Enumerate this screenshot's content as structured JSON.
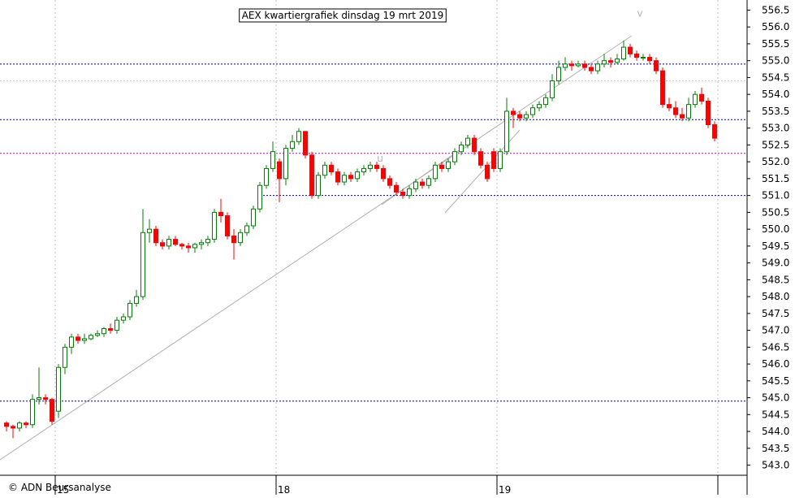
{
  "chart_data": {
    "type": "candlestick",
    "title": "AEX kwartiergrafiek dinsdag 19 mrt 2019",
    "footer": "© ADN Beursanalyse",
    "annotations": [
      {
        "text": "u",
        "x": 57.5,
        "y": 552.0
      },
      {
        "text": "v",
        "x": 97.5,
        "y": 556.3
      }
    ],
    "xlim": [
      -1,
      114
    ],
    "ylim": [
      542.7,
      556.8
    ],
    "xticks": [
      {
        "value": 7.5,
        "label": "15"
      },
      {
        "value": 41.5,
        "label": "18"
      },
      {
        "value": 75.5,
        "label": "19"
      },
      {
        "value": 109.5,
        "label": null
      }
    ],
    "yticks": [
      {
        "value": 543,
        "label": "543.0"
      },
      543.5,
      {
        "value": 544,
        "label": "544.0"
      },
      544.5,
      {
        "value": 545,
        "label": "545.0"
      },
      545.5,
      {
        "value": 546,
        "label": "546.0"
      },
      546.5,
      {
        "value": 547,
        "label": "547.0"
      },
      547.5,
      {
        "value": 548,
        "label": "548.0"
      },
      548.5,
      {
        "value": 549,
        "label": "549.0"
      },
      549.5,
      {
        "value": 550,
        "label": "550.0"
      },
      550.5,
      {
        "value": 551,
        "label": "551.0"
      },
      551.5,
      {
        "value": 552,
        "label": "552.0"
      },
      552.5,
      {
        "value": 553,
        "label": "553.0"
      },
      553.5,
      {
        "value": 554,
        "label": "554.0"
      },
      554.5,
      {
        "value": 555,
        "label": "555.0"
      },
      555.5,
      {
        "value": 556,
        "label": "556.0"
      },
      556.5
    ],
    "grid": true,
    "up_color": "#008000",
    "down_color": "#ff0000",
    "levels": [
      {
        "value": 554.9,
        "color": "#0000a0"
      },
      {
        "value": 554.4,
        "color": "#c0c0c0"
      },
      {
        "value": 553.25,
        "color": "#0000a0"
      },
      {
        "value": 552.25,
        "color": "#c000c0"
      },
      {
        "value": 551.0,
        "color": "#0000a0",
        "from": 39
      },
      {
        "value": 544.9,
        "color": "#0000a0"
      }
    ],
    "open": [
      544.25,
      544.15,
      544.1,
      544.25,
      544.2,
      544.95,
      545.0,
      544.95,
      544.6,
      545.9,
      546.5,
      546.8,
      546.7,
      546.75,
      546.85,
      546.9,
      547.05,
      547.0,
      547.3,
      547.4,
      547.8,
      548.0,
      549.9,
      550.0,
      549.6,
      549.5,
      549.7,
      549.55,
      549.5,
      549.45,
      549.55,
      549.6,
      549.7,
      550.5,
      550.4,
      549.8,
      549.6,
      549.9,
      550.1,
      550.6,
      551.3,
      551.8,
      552.0,
      551.5,
      552.4,
      552.6,
      552.9,
      552.2,
      551.0,
      551.6,
      551.9,
      551.7,
      551.4,
      551.6,
      551.5,
      551.7,
      551.8,
      551.9,
      551.8,
      551.5,
      551.3,
      551.1,
      551.0,
      551.2,
      551.4,
      551.3,
      551.5,
      551.9,
      551.8,
      552.0,
      552.3,
      552.5,
      552.7,
      552.3,
      551.9,
      552.3,
      551.8,
      552.3,
      553.5,
      553.4,
      553.3,
      553.4,
      553.6,
      553.7,
      553.9,
      554.4,
      554.8,
      554.9,
      554.85,
      554.9,
      554.8,
      554.7,
      554.9,
      555.0,
      554.95,
      555.05,
      555.4,
      555.2,
      555.1,
      555.1,
      555.0,
      554.7,
      553.7,
      553.6,
      553.4,
      553.3,
      553.7,
      554.0,
      553.8,
      553.1
    ],
    "high": [
      544.3,
      544.2,
      544.3,
      544.3,
      545.1,
      545.9,
      545.1,
      545.0,
      546.0,
      546.6,
      546.9,
      546.9,
      546.9,
      546.9,
      547.0,
      547.1,
      547.2,
      547.4,
      547.5,
      547.9,
      548.2,
      550.6,
      550.3,
      550.1,
      549.7,
      549.8,
      549.8,
      549.6,
      549.6,
      549.6,
      549.7,
      549.8,
      550.6,
      550.9,
      550.5,
      550.0,
      550.0,
      550.2,
      550.7,
      551.4,
      551.9,
      552.6,
      552.1,
      552.5,
      552.8,
      553.0,
      552.9,
      552.3,
      551.7,
      552.0,
      552.0,
      551.8,
      551.7,
      551.7,
      551.8,
      551.9,
      552.0,
      552.0,
      551.9,
      551.6,
      551.4,
      551.2,
      551.3,
      551.5,
      551.5,
      551.6,
      552.0,
      552.0,
      552.1,
      552.4,
      552.6,
      552.8,
      552.8,
      552.4,
      552.0,
      552.4,
      552.4,
      553.9,
      553.6,
      553.5,
      553.5,
      553.7,
      553.8,
      554.0,
      554.6,
      555.0,
      555.1,
      555.0,
      555.0,
      555.0,
      554.9,
      555.0,
      555.2,
      555.1,
      555.2,
      555.6,
      555.5,
      555.3,
      555.2,
      555.2,
      555.1,
      554.8,
      553.9,
      553.8,
      553.6,
      553.9,
      554.1,
      554.2,
      553.9,
      553.2
    ],
    "low": [
      544.0,
      543.8,
      544.0,
      544.1,
      544.1,
      544.8,
      544.8,
      544.2,
      544.4,
      545.7,
      546.3,
      546.6,
      546.6,
      546.7,
      546.8,
      546.8,
      546.9,
      546.9,
      547.2,
      547.3,
      547.7,
      547.9,
      549.6,
      549.5,
      549.4,
      549.4,
      549.5,
      549.4,
      549.3,
      549.3,
      549.4,
      549.5,
      549.6,
      550.2,
      549.7,
      549.1,
      549.5,
      549.8,
      550.0,
      550.5,
      551.2,
      551.7,
      550.8,
      551.3,
      552.3,
      552.5,
      552.1,
      550.9,
      550.9,
      551.5,
      551.6,
      551.3,
      551.3,
      551.4,
      551.4,
      551.6,
      551.7,
      551.7,
      551.4,
      551.2,
      551.0,
      550.9,
      550.9,
      551.1,
      551.2,
      551.2,
      551.4,
      551.7,
      551.7,
      551.9,
      552.2,
      552.4,
      552.2,
      551.8,
      551.4,
      551.7,
      551.7,
      552.2,
      553.0,
      553.2,
      553.2,
      553.3,
      553.5,
      553.6,
      553.8,
      554.3,
      554.7,
      554.7,
      554.8,
      554.7,
      554.6,
      554.6,
      554.8,
      554.8,
      554.9,
      555.0,
      555.1,
      555.0,
      555.0,
      554.9,
      554.6,
      553.6,
      553.5,
      553.3,
      553.2,
      553.2,
      553.6,
      553.7,
      553.0,
      552.6
    ],
    "close": [
      544.15,
      544.1,
      544.25,
      544.2,
      544.95,
      545.0,
      544.95,
      544.3,
      545.9,
      546.5,
      546.8,
      546.7,
      546.75,
      546.85,
      546.9,
      547.05,
      547.0,
      547.3,
      547.4,
      547.8,
      548.0,
      549.9,
      550.0,
      549.6,
      549.5,
      549.7,
      549.55,
      549.5,
      549.45,
      549.55,
      549.6,
      549.7,
      550.5,
      550.4,
      549.8,
      549.6,
      549.9,
      550.1,
      550.6,
      551.3,
      551.8,
      552.3,
      551.5,
      552.4,
      552.6,
      552.9,
      552.2,
      551.0,
      551.6,
      551.9,
      551.7,
      551.4,
      551.6,
      551.5,
      551.7,
      551.8,
      551.9,
      551.8,
      551.5,
      551.3,
      551.1,
      551.0,
      551.2,
      551.4,
      551.3,
      551.5,
      551.9,
      551.8,
      552.0,
      552.3,
      552.5,
      552.7,
      552.3,
      551.9,
      551.5,
      551.8,
      552.3,
      553.5,
      553.4,
      553.3,
      553.4,
      553.6,
      553.7,
      553.9,
      554.4,
      554.8,
      554.9,
      554.85,
      554.9,
      554.8,
      554.7,
      554.9,
      555.0,
      554.95,
      555.05,
      555.4,
      555.2,
      555.1,
      555.1,
      555.0,
      554.7,
      553.7,
      553.6,
      553.4,
      553.3,
      553.7,
      554.0,
      553.8,
      553.1,
      552.7
    ]
  }
}
